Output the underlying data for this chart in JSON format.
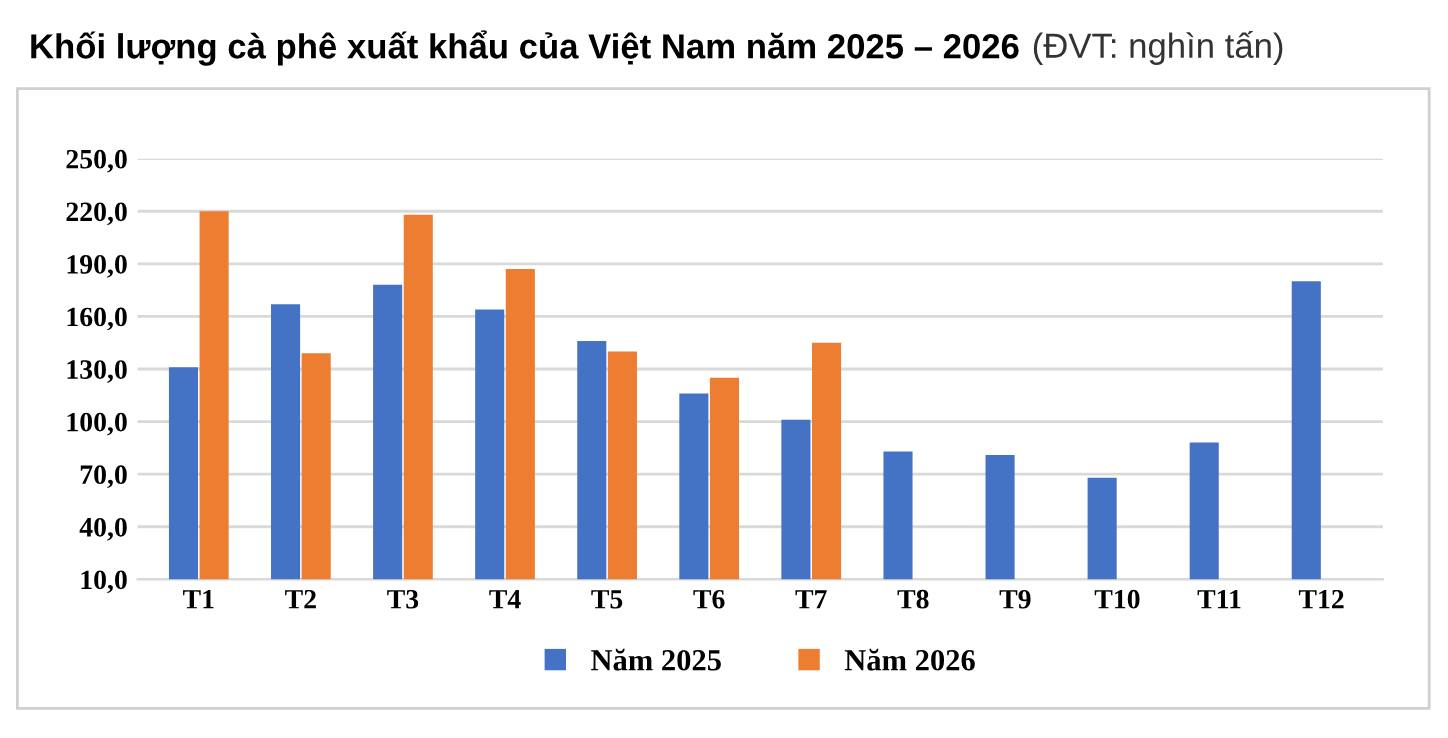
{
  "chart_data": {
    "type": "bar",
    "title": "Khối lượng cà phê xuất khẩu của Việt Nam năm 2025 – 2026",
    "subtitle": "(ĐVT: nghìn tấn)",
    "categories": [
      "T1",
      "T2",
      "T3",
      "T4",
      "T5",
      "T6",
      "T7",
      "T8",
      "T9",
      "T10",
      "T11",
      "T12"
    ],
    "series": [
      {
        "name": "Năm 2025",
        "color": "#4472c4",
        "values": [
          131,
          167,
          178,
          164,
          146,
          116,
          101,
          83,
          81,
          68,
          88,
          180
        ]
      },
      {
        "name": "Năm 2026",
        "color": "#ed7d31",
        "values": [
          220,
          139,
          218,
          187,
          140,
          125,
          145,
          null,
          null,
          null,
          null,
          null
        ]
      }
    ],
    "ylim": [
      10,
      250
    ],
    "yticks": [
      {
        "value": 10,
        "label": "10,0"
      },
      {
        "value": 40,
        "label": "40,0"
      },
      {
        "value": 70,
        "label": "70,0"
      },
      {
        "value": 100,
        "label": "100,0"
      },
      {
        "value": 130,
        "label": "130,0"
      },
      {
        "value": 160,
        "label": "160,0"
      },
      {
        "value": 190,
        "label": "190,0"
      },
      {
        "value": 220,
        "label": "220,0"
      },
      {
        "value": 250,
        "label": "250,0"
      }
    ],
    "grid": "y",
    "legend": "bottom"
  }
}
